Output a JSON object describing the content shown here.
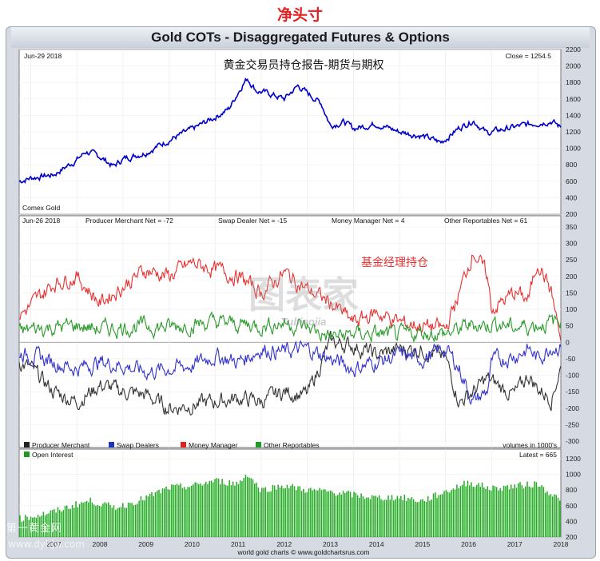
{
  "header": {
    "title_cn": "净头寸",
    "banner": "Gold COTs - Disaggregated Futures & Options"
  },
  "footer": {
    "credit": "world gold charts © www.goldchartsrus.com"
  },
  "watermarks": {
    "site_cn": "第一黄金网",
    "site_url": "www.dyhjw.com",
    "logo_cn": "图表家",
    "logo_en": "Tubiaojia"
  },
  "colors": {
    "price": "#0000cc",
    "producer": "#333333",
    "swap": "#3333cc",
    "money": "#e83030",
    "other": "#2a9a2a",
    "oi": "#22aa22",
    "title_red": "#e02020"
  },
  "chart_data": [
    {
      "type": "line",
      "panel": "price",
      "date_label": "Jun-29 2018",
      "subtitle_cn": "黄金交易员持仓报告-期货与期权",
      "close_label": "Close = 1254.5",
      "source_label": "Comex Gold",
      "ylim": [
        200,
        2200
      ],
      "yticks": [
        200,
        400,
        600,
        800,
        1000,
        1200,
        1400,
        1600,
        1800,
        2000,
        2200
      ],
      "x": [
        2006.75,
        2007.0,
        2007.5,
        2008.0,
        2008.2,
        2008.5,
        2008.8,
        2009.0,
        2009.5,
        2010.0,
        2010.5,
        2011.0,
        2011.3,
        2011.6,
        2011.7,
        2011.9,
        2012.2,
        2012.5,
        2012.8,
        2013.0,
        2013.3,
        2013.5,
        2013.8,
        2014.0,
        2014.5,
        2015.0,
        2015.5,
        2015.9,
        2016.3,
        2016.6,
        2016.9,
        2017.0,
        2017.5,
        2018.0,
        2018.3,
        2018.5
      ],
      "series": [
        {
          "values": [
            600,
            640,
            680,
            860,
            960,
            900,
            780,
            870,
            950,
            1100,
            1230,
            1380,
            1480,
            1780,
            1850,
            1700,
            1660,
            1600,
            1760,
            1670,
            1550,
            1280,
            1320,
            1240,
            1300,
            1200,
            1150,
            1070,
            1250,
            1340,
            1180,
            1200,
            1260,
            1310,
            1330,
            1254.5
          ]
        }
      ]
    },
    {
      "type": "line",
      "panel": "net_positions",
      "date_label": "Jun-26 2018",
      "annotation_cn": "基金经理持仓",
      "ylim": [
        -300,
        350
      ],
      "yticks": [
        -300,
        -250,
        -200,
        -150,
        -100,
        -50,
        0,
        50,
        100,
        150,
        200,
        250,
        300,
        350
      ],
      "x": [
        2006.75,
        2007.0,
        2007.5,
        2008.0,
        2008.5,
        2009.0,
        2009.5,
        2010.0,
        2010.5,
        2011.0,
        2011.5,
        2012.0,
        2012.5,
        2013.0,
        2013.5,
        2014.0,
        2014.5,
        2015.0,
        2015.5,
        2016.0,
        2016.3,
        2016.6,
        2016.9,
        2017.0,
        2017.5,
        2017.8,
        2018.0,
        2018.3,
        2018.5
      ],
      "series": [
        {
          "name": "Producer Merchant",
          "net_label": "Producer Merchant Net = -72",
          "values": [
            -60,
            -80,
            -150,
            -180,
            -130,
            -150,
            -160,
            -200,
            -190,
            -180,
            -170,
            -180,
            -150,
            -160,
            0,
            -10,
            -40,
            -20,
            -20,
            -50,
            -180,
            -150,
            -110,
            -120,
            -160,
            -100,
            -140,
            -170,
            -72
          ]
        },
        {
          "name": "Swap Dealers",
          "net_label": "Swap Dealer Net = -15",
          "values": [
            -30,
            -40,
            -60,
            -80,
            -60,
            -70,
            -90,
            -80,
            -70,
            -40,
            -60,
            -20,
            -30,
            -20,
            -50,
            -80,
            -60,
            -40,
            -50,
            -20,
            -80,
            -180,
            -150,
            -60,
            -40,
            -20,
            -50,
            -10,
            -15
          ]
        },
        {
          "name": "Money Manager",
          "net_label": "Money Manager Net = 4",
          "values": [
            80,
            110,
            180,
            200,
            120,
            170,
            220,
            200,
            240,
            220,
            200,
            150,
            210,
            160,
            120,
            60,
            90,
            60,
            50,
            40,
            150,
            280,
            200,
            100,
            150,
            130,
            250,
            150,
            4
          ]
        },
        {
          "name": "Other Reportables",
          "net_label": "Other Reportables Net = 61",
          "values": [
            30,
            40,
            45,
            50,
            40,
            45,
            50,
            45,
            55,
            60,
            55,
            50,
            60,
            45,
            15,
            25,
            25,
            20,
            30,
            25,
            40,
            55,
            50,
            60,
            45,
            50,
            55,
            60,
            61
          ]
        }
      ],
      "legend": [
        "Producer Merchant",
        "Swap Dealers",
        "Money Manager",
        "Other Reportables"
      ],
      "units_label": "volumes in 1000's"
    },
    {
      "type": "bar",
      "panel": "open_interest",
      "legend": [
        "Open Interest"
      ],
      "latest_label": "Latest = 665",
      "ylim": [
        200,
        1200
      ],
      "yticks": [
        200,
        400,
        600,
        800,
        1000,
        1200
      ],
      "x": [
        2006.75,
        2007.0,
        2007.5,
        2008.0,
        2008.3,
        2008.8,
        2009.0,
        2009.5,
        2010.0,
        2010.5,
        2011.0,
        2011.5,
        2011.7,
        2012.0,
        2012.5,
        2013.0,
        2013.5,
        2014.0,
        2014.5,
        2015.0,
        2015.5,
        2016.0,
        2016.5,
        2017.0,
        2017.5,
        2018.0,
        2018.5
      ],
      "series": [
        {
          "name": "Open Interest",
          "values": [
            430,
            460,
            520,
            620,
            660,
            580,
            600,
            700,
            830,
            850,
            920,
            880,
            1010,
            800,
            860,
            800,
            780,
            740,
            700,
            710,
            660,
            780,
            900,
            820,
            850,
            880,
            665
          ]
        }
      ],
      "xticks": [
        "2007",
        "2008",
        "2009",
        "2010",
        "2011",
        "2012",
        "2013",
        "2014",
        "2015",
        "2016",
        "2017",
        "2018"
      ]
    }
  ]
}
